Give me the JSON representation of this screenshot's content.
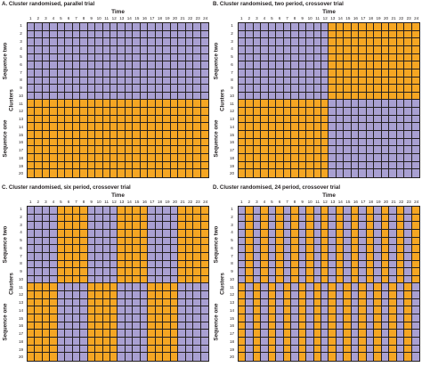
{
  "colors": {
    "sequence_a": "#a9a0d2",
    "sequence_b": "#f5a623",
    "grid_line": "#231f20"
  },
  "labels": {
    "time": "Time",
    "clusters": "Clusters",
    "sequence_two": "Sequence two",
    "sequence_one": "Sequence one"
  },
  "time_ticks": [
    "1",
    "2",
    "3",
    "4",
    "5",
    "6",
    "7",
    "8",
    "9",
    "10",
    "11",
    "12",
    "13",
    "14",
    "15",
    "16",
    "17",
    "18",
    "19",
    "20",
    "21",
    "22",
    "23",
    "24"
  ],
  "cluster_ticks": [
    "1",
    "2",
    "3",
    "4",
    "5",
    "6",
    "7",
    "8",
    "9",
    "10",
    "11",
    "12",
    "13",
    "14",
    "15",
    "16",
    "17",
    "18",
    "19",
    "20"
  ],
  "panels": [
    {
      "title": "A. Cluster randomised, parallel trial",
      "period_length": 24
    },
    {
      "title": "B. Cluster randomised, two period, crossover trial",
      "period_length": 12
    },
    {
      "title": "C. Cluster randomised, six period, crossover trial",
      "period_length": 4
    },
    {
      "title": "D. Cluster randomised, 24 period, crossover trial",
      "period_length": 1
    }
  ]
}
